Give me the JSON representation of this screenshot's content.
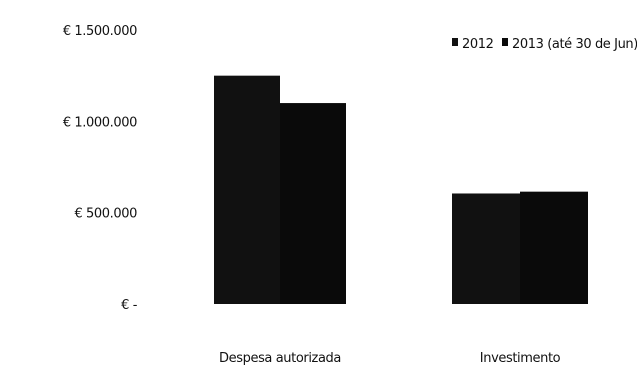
{
  "chart_data": {
    "type": "bar",
    "title": "",
    "xlabel": "",
    "ylabel": "",
    "categories": [
      "Despesa autorizada",
      "Investimento"
    ],
    "series": [
      {
        "name": "2012",
        "values": [
          1250000,
          605000
        ],
        "color": "#111111"
      },
      {
        "name": "2013 (até 30 de Jun)",
        "values": [
          1100000,
          615000
        ],
        "color": "#0a0a0a"
      }
    ],
    "ylim": [
      0,
      1500000
    ],
    "y_ticks": [
      {
        "value": 0,
        "label": "€ -"
      },
      {
        "value": 500000,
        "label": "€ 500.000"
      },
      {
        "value": 1000000,
        "label": "€ 1.000.000"
      },
      {
        "value": 1500000,
        "label": "€ 1.500.000"
      }
    ],
    "grid": false,
    "legend_position": "top-right"
  }
}
